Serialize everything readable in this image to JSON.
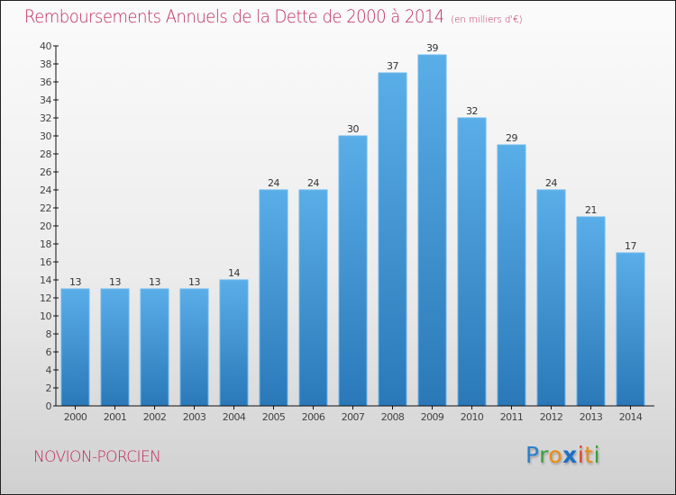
{
  "header": {
    "title": "Remboursements Annuels de la Dette de 2000 à 2014",
    "unit": "(en milliers d'€)"
  },
  "footer": {
    "commune": "NOVION-PORCIEN",
    "logo": {
      "letters": [
        "P",
        "r",
        "o",
        "x",
        "i",
        "t",
        "i"
      ],
      "colors": [
        "#2a7fcf",
        "#3aa040",
        "#f08a10",
        "#1d6fc9",
        "#e0402a",
        "#f08a10",
        "#3aa040"
      ]
    }
  },
  "colors": {
    "accent": "#c0295e",
    "bar_top": "#5aaee8",
    "bar_bottom": "#2a78b8"
  },
  "chart_data": {
    "type": "bar",
    "title": "Remboursements Annuels de la Dette de 2000 à 2014",
    "subtitle": "(en milliers d'€)",
    "xlabel": "",
    "ylabel": "",
    "categories": [
      "2000",
      "2001",
      "2002",
      "2003",
      "2004",
      "2005",
      "2006",
      "2007",
      "2008",
      "2009",
      "2010",
      "2011",
      "2012",
      "2013",
      "2014"
    ],
    "values": [
      13,
      13,
      13,
      13,
      14,
      24,
      24,
      30,
      37,
      39,
      32,
      29,
      24,
      21,
      17
    ],
    "data_labels": [
      "13",
      "13",
      "13",
      "13",
      "14",
      "24",
      "24",
      "30",
      "37",
      "39",
      "32",
      "29",
      "24",
      "21",
      "17"
    ],
    "ylim": [
      0,
      40
    ],
    "yticks": [
      0,
      2,
      4,
      6,
      8,
      10,
      12,
      14,
      16,
      18,
      20,
      22,
      24,
      26,
      28,
      30,
      32,
      34,
      36,
      38,
      40
    ],
    "grid": false,
    "legend": "none"
  }
}
